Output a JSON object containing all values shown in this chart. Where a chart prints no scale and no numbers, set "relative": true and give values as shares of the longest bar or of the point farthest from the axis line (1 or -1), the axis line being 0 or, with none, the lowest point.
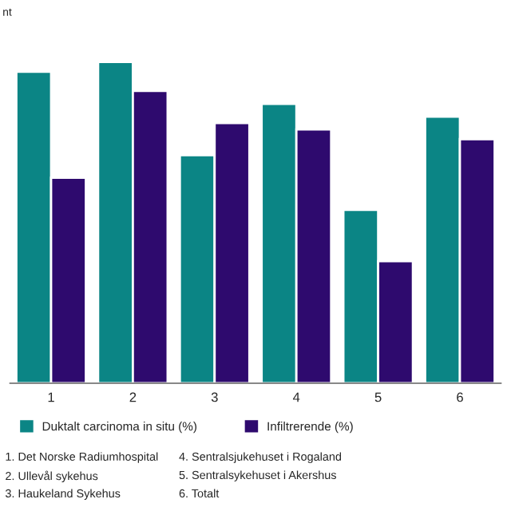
{
  "chart_data": {
    "type": "bar",
    "ylabel": "nt",
    "relative": true,
    "categories": [
      "1",
      "2",
      "3",
      "4",
      "5",
      "6"
    ],
    "series": [
      {
        "name": "Duktalt carcinoma in situ (%)",
        "color": "#0b8585",
        "values": [
          0.97,
          1,
          0.71,
          0.87,
          0.54,
          0.83
        ]
      },
      {
        "name": "Infiltrerende (%)",
        "color": "#2e0a6e",
        "values": [
          0.64,
          0.91,
          0.81,
          0.79,
          0.38,
          0.76
        ]
      }
    ],
    "legend": "bottom",
    "grid": false,
    "annotations": [
      "1. Det Norske Radiumhospital",
      "2. Ullevål sykehus",
      "3. Haukeland Sykehus",
      "4. Sentralsjukehuset i Rogaland",
      "5. Sentralsykehuset i Akershus",
      "6. Totalt"
    ]
  }
}
